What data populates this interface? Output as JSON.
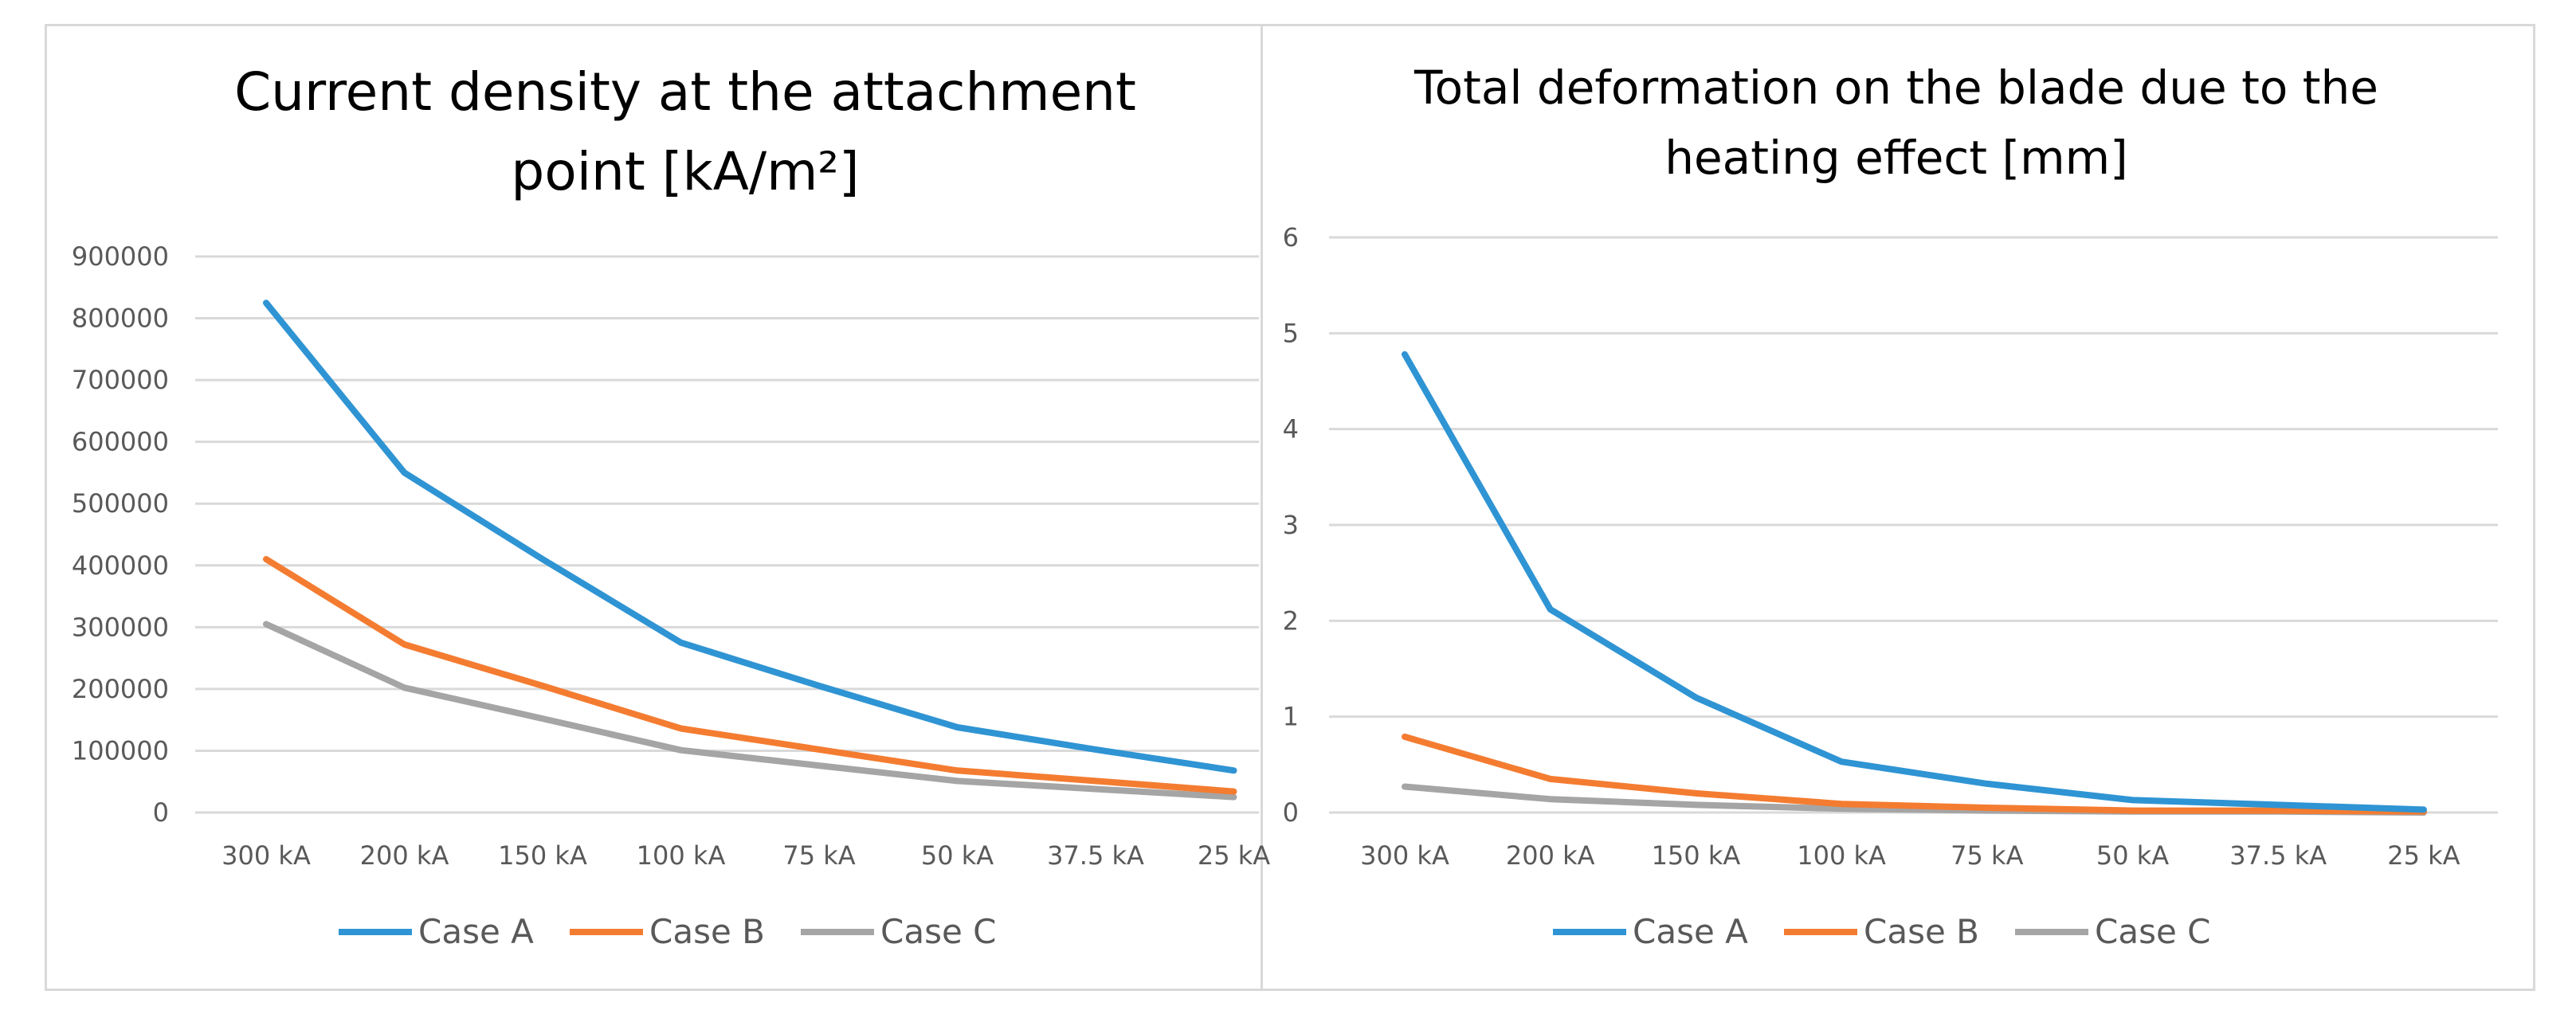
{
  "colors": {
    "case_a": "#2f94d3",
    "case_b": "#f47c31",
    "case_c": "#a5a5a5",
    "grid": "#d9d9d9",
    "axis_text": "#595959"
  },
  "chart_data": [
    {
      "type": "line",
      "title_lines": [
        "Current density at the attachment",
        "point [kA/m²]"
      ],
      "xlabel": "",
      "ylabel": "",
      "categories": [
        "300 kA",
        "200 kA",
        "150 kA",
        "100 kA",
        "75 kA",
        "50 kA",
        "37.5 kA",
        "25 kA"
      ],
      "ylim": [
        0,
        900000
      ],
      "yticks": [
        0,
        100000,
        200000,
        300000,
        400000,
        500000,
        600000,
        700000,
        800000,
        900000
      ],
      "ytick_labels": [
        "0",
        "100000",
        "200000",
        "300000",
        "400000",
        "500000",
        "600000",
        "700000",
        "800000",
        "900000"
      ],
      "grid": true,
      "legend_position": "bottom",
      "series": [
        {
          "name": "Case A",
          "values": [
            825000,
            550000,
            410000,
            275000,
            205000,
            138000,
            102000,
            68000
          ]
        },
        {
          "name": "Case B",
          "values": [
            410000,
            272000,
            205000,
            136000,
            102000,
            68000,
            51000,
            34000
          ]
        },
        {
          "name": "Case C",
          "values": [
            305000,
            202000,
            152000,
            101000,
            76000,
            51000,
            38000,
            25000
          ]
        }
      ]
    },
    {
      "type": "line",
      "title_lines": [
        "Total deformation on the blade due to the",
        "heating effect [mm]"
      ],
      "xlabel": "",
      "ylabel": "",
      "categories": [
        "300 kA",
        "200 kA",
        "150 kA",
        "100 kA",
        "75 kA",
        "50 kA",
        "37.5 kA",
        "25 kA"
      ],
      "ylim": [
        0,
        6
      ],
      "yticks": [
        0,
        1,
        2,
        3,
        4,
        5,
        6
      ],
      "ytick_labels": [
        "0",
        "1",
        "2",
        "3",
        "4",
        "5",
        "6"
      ],
      "grid": true,
      "legend_position": "bottom",
      "series": [
        {
          "name": "Case A",
          "values": [
            4.78,
            2.12,
            1.2,
            0.53,
            0.3,
            0.13,
            0.08,
            0.03
          ]
        },
        {
          "name": "Case B",
          "values": [
            0.79,
            0.35,
            0.2,
            0.09,
            0.05,
            0.02,
            0.02,
            0.01
          ]
        },
        {
          "name": "Case C",
          "values": [
            0.27,
            0.14,
            0.08,
            0.04,
            0.02,
            0.01,
            0.01,
            0.0
          ]
        }
      ]
    }
  ]
}
